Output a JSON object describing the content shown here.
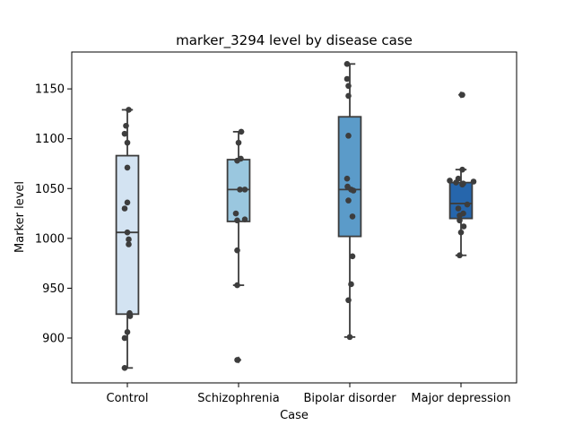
{
  "chart_data": {
    "type": "box",
    "title": "marker_3294 level by disease case",
    "xlabel": "Case",
    "ylabel": "Marker level",
    "ylim": [
      855,
      1187
    ],
    "yticks": [
      900,
      950,
      1000,
      1050,
      1100,
      1150
    ],
    "grid": false,
    "legend": "none",
    "categories": [
      "Control",
      "Schizophrenia",
      "Bipolar disorder",
      "Major depression"
    ],
    "colors": [
      "#d3e3f2",
      "#9ac7df",
      "#5b9bc9",
      "#2666ac"
    ],
    "boxes": [
      {
        "category": "Control",
        "whisker_low": 870,
        "q1": 924,
        "median": 1006,
        "q3": 1083,
        "whisker_high": 1129,
        "outliers": []
      },
      {
        "category": "Schizophrenia",
        "whisker_low": 953,
        "q1": 1017,
        "median": 1049,
        "q3": 1079,
        "whisker_high": 1107,
        "outliers": [
          878
        ]
      },
      {
        "category": "Bipolar disorder",
        "whisker_low": 901,
        "q1": 1002,
        "median": 1049,
        "q3": 1122,
        "whisker_high": 1175,
        "outliers": []
      },
      {
        "category": "Major depression",
        "whisker_low": 983,
        "q1": 1020,
        "median": 1035,
        "q3": 1056,
        "whisker_high": 1069,
        "outliers": [
          1144
        ]
      }
    ],
    "points": [
      {
        "category": "Control",
        "values": [
          870,
          900,
          906,
          922,
          925,
          994,
          999,
          1006,
          1030,
          1036,
          1071,
          1096,
          1105,
          1113,
          1129
        ]
      },
      {
        "category": "Schizophrenia",
        "values": [
          878,
          953,
          988,
          1018,
          1019,
          1025,
          1049,
          1049,
          1078,
          1080,
          1096,
          1107
        ]
      },
      {
        "category": "Bipolar disorder",
        "values": [
          901,
          938,
          954,
          982,
          1022,
          1038,
          1049,
          1048,
          1052,
          1060,
          1103,
          1143,
          1153,
          1160,
          1175
        ]
      },
      {
        "category": "Major depression",
        "values": [
          983,
          1006,
          1012,
          1018,
          1023,
          1025,
          1030,
          1034,
          1054,
          1055,
          1056,
          1057,
          1058,
          1060,
          1069,
          1144
        ]
      }
    ]
  }
}
